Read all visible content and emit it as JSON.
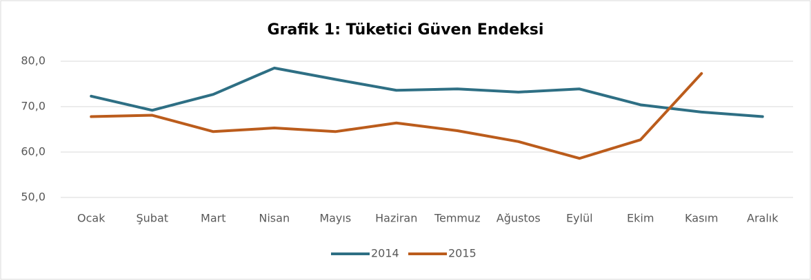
{
  "chart_data": {
    "type": "line",
    "title": "Grafik 1: Tüketici Güven Endeksi",
    "categories": [
      "Ocak",
      "Şubat",
      "Mart",
      "Nisan",
      "Mayıs",
      "Haziran",
      "Temmuz",
      "Ağustos",
      "Eylül",
      "Ekim",
      "Kasım",
      "Aralık"
    ],
    "series": [
      {
        "name": "2014",
        "color": "#2e6f84",
        "values": [
          72.3,
          69.2,
          72.7,
          78.5,
          76.0,
          73.6,
          73.9,
          73.2,
          73.9,
          70.4,
          68.8,
          67.8
        ]
      },
      {
        "name": "2015",
        "color": "#bb5c1c",
        "values": [
          67.8,
          68.1,
          64.5,
          65.3,
          64.5,
          66.4,
          64.7,
          62.3,
          58.6,
          62.7,
          77.3,
          null
        ]
      }
    ],
    "ylim": [
      50,
      80
    ],
    "yticks": [
      {
        "value": 50,
        "label": "50,0"
      },
      {
        "value": 60,
        "label": "60,0"
      },
      {
        "value": 70,
        "label": "70,0"
      },
      {
        "value": 80,
        "label": "80,0"
      }
    ],
    "grid": true,
    "legend": "bottom"
  }
}
